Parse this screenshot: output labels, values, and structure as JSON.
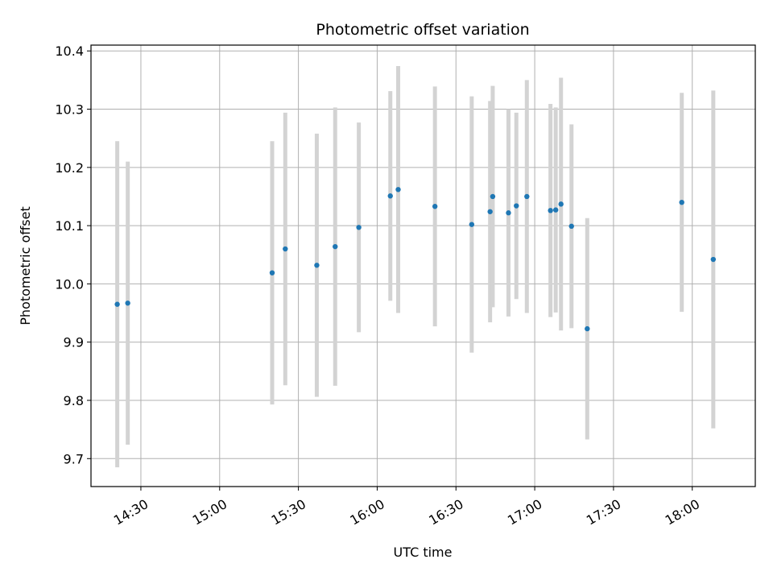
{
  "chart_data": {
    "type": "scatter",
    "title": "Photometric offset variation",
    "xlabel": "UTC time",
    "ylabel": "Photometric offset",
    "x_tick_labels": [
      "14:30",
      "15:00",
      "15:30",
      "16:00",
      "16:30",
      "17:00",
      "17:30",
      "18:00"
    ],
    "x_ticks": [
      "14:30",
      "15:00",
      "15:30",
      "16:00",
      "16:30",
      "17:00",
      "17:30",
      "18:00"
    ],
    "y_tick_labels": [
      "9.7",
      "9.8",
      "9.9",
      "10.0",
      "10.1",
      "10.2",
      "10.3",
      "10.4"
    ],
    "y_ticks": [
      9.7,
      9.8,
      9.9,
      10.0,
      10.1,
      10.2,
      10.3,
      10.4
    ],
    "xlim": [
      "14:11",
      "18:24"
    ],
    "ylim": [
      9.652,
      10.41
    ],
    "grid": true,
    "point_color": "#1f77b4",
    "errorbar_color": "#d3d3d3",
    "points": [
      {
        "x": "14:21",
        "y": 9.965,
        "err": 0.28
      },
      {
        "x": "14:25",
        "y": 9.967,
        "err": 0.243
      },
      {
        "x": "15:20",
        "y": 10.019,
        "err": 0.226
      },
      {
        "x": "15:25",
        "y": 10.06,
        "err": 0.234
      },
      {
        "x": "15:37",
        "y": 10.032,
        "err": 0.226
      },
      {
        "x": "15:44",
        "y": 10.064,
        "err": 0.239
      },
      {
        "x": "15:53",
        "y": 10.097,
        "err": 0.18
      },
      {
        "x": "16:05",
        "y": 10.151,
        "err": 0.18
      },
      {
        "x": "16:08",
        "y": 10.162,
        "err": 0.212
      },
      {
        "x": "16:22",
        "y": 10.133,
        "err": 0.206
      },
      {
        "x": "16:36",
        "y": 10.102,
        "err": 0.22
      },
      {
        "x": "16:43",
        "y": 10.124,
        "err": 0.19
      },
      {
        "x": "16:44",
        "y": 10.15,
        "err": 0.19
      },
      {
        "x": "16:50",
        "y": 10.122,
        "err": 0.178
      },
      {
        "x": "16:53",
        "y": 10.134,
        "err": 0.16
      },
      {
        "x": "16:57",
        "y": 10.15,
        "err": 0.2
      },
      {
        "x": "17:06",
        "y": 10.126,
        "err": 0.183
      },
      {
        "x": "17:08",
        "y": 10.127,
        "err": 0.176
      },
      {
        "x": "17:10",
        "y": 10.137,
        "err": 0.217
      },
      {
        "x": "17:14",
        "y": 10.099,
        "err": 0.175
      },
      {
        "x": "17:20",
        "y": 9.923,
        "err": 0.19
      },
      {
        "x": "17:56",
        "y": 10.14,
        "err": 0.188
      },
      {
        "x": "18:08",
        "y": 10.042,
        "err": 0.29
      }
    ]
  }
}
